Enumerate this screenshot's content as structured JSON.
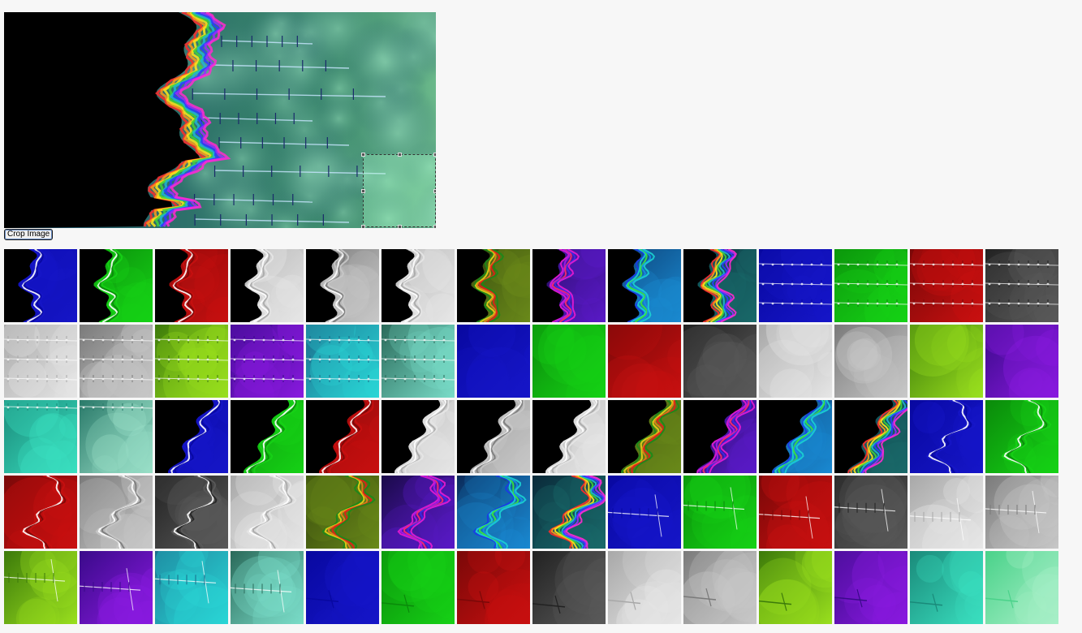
{
  "toolbar": {
    "crop_label": "Crop Image"
  },
  "palettes": {
    "rainbow": [
      "#ff2a2a",
      "#ff9a1a",
      "#ffe81a",
      "#3fd23a",
      "#1fb5d6",
      "#2a3cff",
      "#9a2aff",
      "#ff2ad0"
    ],
    "light": {
      "blue": [
        "#1616c8",
        "#0808a0"
      ],
      "green": [
        "#16d216",
        "#0a8a0a"
      ],
      "red": [
        "#c81010",
        "#7a0808"
      ],
      "graydark": [
        "#5a5a5a",
        "#222222"
      ],
      "graylight": [
        "#e6e6e6",
        "#a8a8a8"
      ],
      "graymid": [
        "#c8c8c8",
        "#7a7a7a"
      ],
      "lime": [
        "#9ae01e",
        "#3c7a0a"
      ],
      "purple": [
        "#8a1ae0",
        "#3a0a8a"
      ],
      "cyan": [
        "#2ad6d6",
        "#1a6a8a"
      ],
      "teal": [
        "#9ae0c8",
        "#2a7a6a"
      ],
      "aqua": [
        "#3ae0c0",
        "#1a8a7a"
      ],
      "mint": [
        "#a8f0c8",
        "#4ad28a"
      ],
      "tealdark": [
        "#7adcc8",
        "#2a6a5a"
      ]
    }
  },
  "thumbnails": [
    {
      "variant": "edge",
      "palette": "blue"
    },
    {
      "variant": "edge",
      "palette": "green"
    },
    {
      "variant": "edge",
      "palette": "red"
    },
    {
      "variant": "edge",
      "palette": "graylight"
    },
    {
      "variant": "edge",
      "palette": "graymid"
    },
    {
      "variant": "edge",
      "palette": "graylight"
    },
    {
      "variant": "edge",
      "palette": "rainbow-warm"
    },
    {
      "variant": "edge",
      "palette": "rainbow-magenta"
    },
    {
      "variant": "edge",
      "palette": "rainbow-cool"
    },
    {
      "variant": "edge",
      "palette": "rainbow"
    },
    {
      "variant": "field",
      "palette": "blue"
    },
    {
      "variant": "field",
      "palette": "green"
    },
    {
      "variant": "field",
      "palette": "red"
    },
    {
      "variant": "field",
      "palette": "graydark"
    },
    {
      "variant": "field",
      "palette": "graylight"
    },
    {
      "variant": "field",
      "palette": "graymid"
    },
    {
      "variant": "field",
      "palette": "lime"
    },
    {
      "variant": "field",
      "palette": "purple"
    },
    {
      "variant": "field",
      "palette": "cyan"
    },
    {
      "variant": "field",
      "palette": "tealdark"
    },
    {
      "variant": "flat",
      "palette": "blue"
    },
    {
      "variant": "flat",
      "palette": "green"
    },
    {
      "variant": "flat",
      "palette": "red"
    },
    {
      "variant": "flat",
      "palette": "graydark"
    },
    {
      "variant": "flat",
      "palette": "graylight"
    },
    {
      "variant": "flat",
      "palette": "graymid"
    },
    {
      "variant": "flat",
      "palette": "lime"
    },
    {
      "variant": "flat",
      "palette": "purple"
    },
    {
      "variant": "topfield",
      "palette": "aqua"
    },
    {
      "variant": "topfield",
      "palette": "teal"
    },
    {
      "variant": "corner",
      "palette": "blue"
    },
    {
      "variant": "corner",
      "palette": "green"
    },
    {
      "variant": "corner",
      "palette": "red"
    },
    {
      "variant": "corner",
      "palette": "graylight"
    },
    {
      "variant": "corner",
      "palette": "graymid"
    },
    {
      "variant": "corner",
      "palette": "graylight"
    },
    {
      "variant": "corner",
      "palette": "rainbow-warm"
    },
    {
      "variant": "corner",
      "palette": "rainbow-magenta"
    },
    {
      "variant": "corner",
      "palette": "rainbow-cool"
    },
    {
      "variant": "corner",
      "palette": "rainbow"
    },
    {
      "variant": "swirl",
      "palette": "blue"
    },
    {
      "variant": "swirl",
      "palette": "green"
    },
    {
      "variant": "swirl",
      "palette": "red"
    },
    {
      "variant": "swirl",
      "palette": "graymid"
    },
    {
      "variant": "swirl",
      "palette": "graydark"
    },
    {
      "variant": "swirl",
      "palette": "graylight"
    },
    {
      "variant": "swirl",
      "palette": "rainbow-warm"
    },
    {
      "variant": "swirl",
      "palette": "rainbow-magenta"
    },
    {
      "variant": "swirl",
      "palette": "rainbow-cool"
    },
    {
      "variant": "swirl",
      "palette": "rainbow"
    },
    {
      "variant": "branch",
      "palette": "blue"
    },
    {
      "variant": "branch",
      "palette": "green"
    },
    {
      "variant": "branch",
      "palette": "red"
    },
    {
      "variant": "branch",
      "palette": "graydark"
    },
    {
      "variant": "branch",
      "palette": "graylight"
    },
    {
      "variant": "branch",
      "palette": "graymid"
    },
    {
      "variant": "branch",
      "palette": "lime"
    },
    {
      "variant": "branch",
      "palette": "purple"
    },
    {
      "variant": "branch",
      "palette": "cyan"
    },
    {
      "variant": "branch",
      "palette": "tealdark"
    },
    {
      "variant": "tip",
      "palette": "blue"
    },
    {
      "variant": "tip",
      "palette": "green"
    },
    {
      "variant": "tip",
      "palette": "red"
    },
    {
      "variant": "tip",
      "palette": "graydark"
    },
    {
      "variant": "tip",
      "palette": "graylight"
    },
    {
      "variant": "tip",
      "palette": "graymid"
    },
    {
      "variant": "tip",
      "palette": "lime"
    },
    {
      "variant": "tip",
      "palette": "purple"
    },
    {
      "variant": "tip",
      "palette": "aqua"
    },
    {
      "variant": "tip",
      "palette": "mint"
    }
  ]
}
